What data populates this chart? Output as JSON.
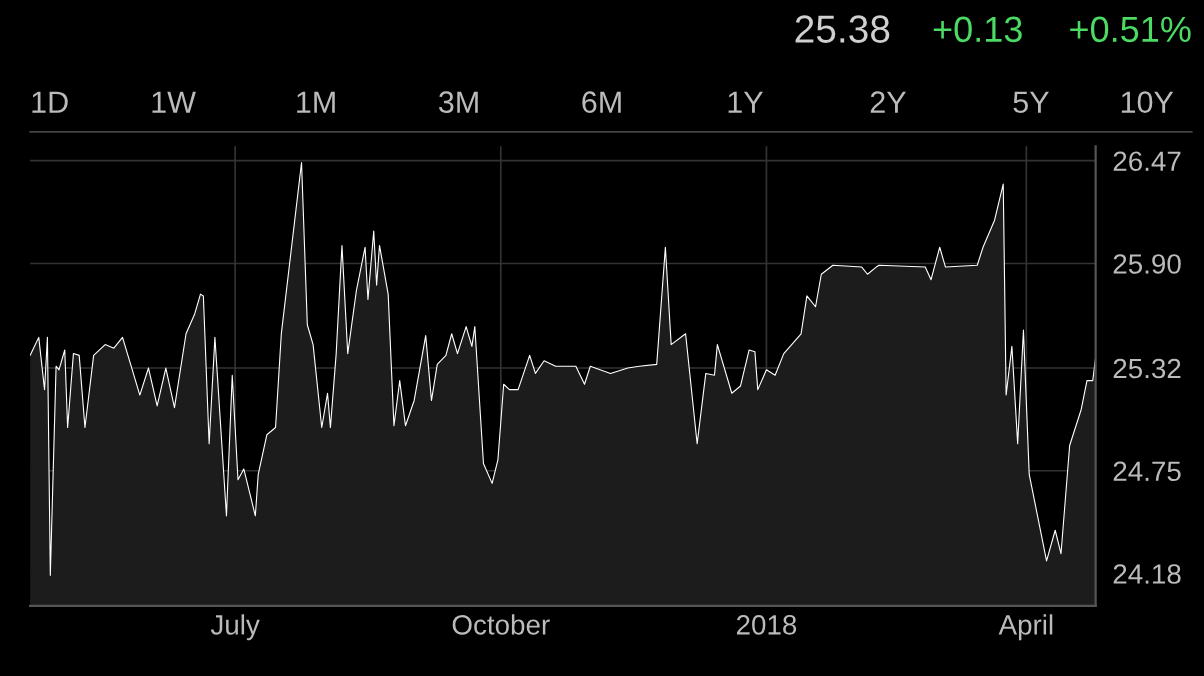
{
  "chart_data": {
    "type": "area",
    "annotations": [
      "25.38",
      "+0.13",
      "+0.51%",
      "1D",
      "1W",
      "1M",
      "3M",
      "6M",
      "1Y",
      "2Y",
      "5Y",
      "10Y"
    ],
    "x": [
      "2017-04-21",
      "2017-04-24",
      "2017-04-26",
      "2017-04-27",
      "2017-04-28",
      "2017-04-30",
      "2017-05-01",
      "2017-05-03",
      "2017-05-04",
      "2017-05-06",
      "2017-05-08",
      "2017-05-10",
      "2017-05-13",
      "2017-05-17",
      "2017-05-20",
      "2017-05-23",
      "2017-05-26",
      "2017-05-29",
      "2017-06-01",
      "2017-06-04",
      "2017-06-07",
      "2017-06-10",
      "2017-06-14",
      "2017-06-17",
      "2017-06-19",
      "2017-06-20",
      "2017-06-22",
      "2017-06-24",
      "2017-06-28",
      "2017-06-30",
      "2017-07-02",
      "2017-07-04",
      "2017-07-08",
      "2017-07-09",
      "2017-07-12",
      "2017-07-15",
      "2017-07-17",
      "2017-07-24",
      "2017-07-26",
      "2017-07-28",
      "2017-07-31",
      "2017-08-02",
      "2017-08-03",
      "2017-08-05",
      "2017-08-07",
      "2017-08-09",
      "2017-08-12",
      "2017-08-15",
      "2017-08-16",
      "2017-08-18",
      "2017-08-19",
      "2017-08-20",
      "2017-08-23",
      "2017-08-25",
      "2017-08-27",
      "2017-08-29",
      "2017-09-01",
      "2017-09-05",
      "2017-09-07",
      "2017-09-09",
      "2017-09-12",
      "2017-09-14",
      "2017-09-16",
      "2017-09-19",
      "2017-09-21",
      "2017-09-22",
      "2017-09-25",
      "2017-09-28",
      "2017-09-30",
      "2017-10-02",
      "2017-10-04",
      "2017-10-07",
      "2017-10-11",
      "2017-10-13",
      "2017-10-16",
      "2017-10-20",
      "2017-10-27",
      "2017-10-30",
      "2017-11-01",
      "2017-11-08",
      "2017-11-14",
      "2017-11-18",
      "2017-11-24",
      "2017-11-27",
      "2017-11-29",
      "2017-12-04",
      "2017-12-08",
      "2017-12-11",
      "2017-12-14",
      "2017-12-15",
      "2017-12-20",
      "2017-12-23",
      "2017-12-26",
      "2017-12-28",
      "2017-12-29",
      "2018-01-01",
      "2018-01-04",
      "2018-01-07",
      "2018-01-13",
      "2018-01-15",
      "2018-01-18",
      "2018-01-20",
      "2018-01-24",
      "2018-02-03",
      "2018-02-05",
      "2018-02-08",
      "2018-02-09",
      "2018-02-25",
      "2018-02-27",
      "2018-03-02",
      "2018-03-04",
      "2018-03-15",
      "2018-03-17",
      "2018-03-21",
      "2018-03-24",
      "2018-03-25",
      "2018-03-27",
      "2018-03-29",
      "2018-03-31",
      "2018-04-02",
      "2018-04-08",
      "2018-04-11",
      "2018-04-13",
      "2018-04-16",
      "2018-04-20",
      "2018-04-22",
      "2018-04-24",
      "2018-04-25"
    ],
    "series": [
      {
        "color": "#ffffff",
        "values": [
          25.39,
          25.49,
          25.2,
          25.49,
          24.17,
          25.33,
          25.31,
          25.42,
          24.99,
          25.4,
          25.39,
          24.99,
          25.39,
          25.45,
          25.43,
          25.49,
          25.33,
          25.17,
          25.32,
          25.11,
          25.32,
          25.1,
          25.51,
          25.62,
          25.73,
          25.72,
          24.9,
          25.49,
          24.5,
          25.28,
          24.7,
          24.76,
          24.5,
          24.73,
          24.95,
          24.99,
          25.51,
          26.46,
          25.56,
          25.45,
          24.99,
          25.18,
          24.99,
          25.4,
          26.0,
          25.4,
          25.75,
          25.99,
          25.7,
          26.08,
          25.78,
          26.0,
          25.73,
          25.0,
          25.25,
          25.0,
          25.14,
          25.5,
          25.14,
          25.34,
          25.39,
          25.51,
          25.4,
          25.55,
          25.44,
          25.55,
          24.79,
          24.68,
          24.81,
          25.23,
          25.2,
          25.2,
          25.39,
          25.29,
          25.36,
          25.33,
          25.33,
          25.23,
          25.33,
          25.29,
          25.32,
          25.33,
          25.34,
          25.99,
          25.45,
          25.51,
          24.9,
          25.29,
          25.28,
          25.45,
          25.18,
          25.22,
          25.42,
          25.41,
          25.2,
          25.31,
          25.28,
          25.4,
          25.51,
          25.72,
          25.66,
          25.84,
          25.89,
          25.88,
          25.84,
          25.88,
          25.89,
          25.88,
          25.81,
          25.99,
          25.88,
          25.89,
          25.99,
          26.14,
          26.34,
          25.17,
          25.44,
          24.9,
          25.53,
          24.73,
          24.25,
          24.42,
          24.29,
          24.89,
          25.09,
          25.25,
          25.25,
          25.38
        ]
      }
    ],
    "xlim": [
      "2017-04-21",
      "2018-04-25"
    ],
    "xticks": [
      {
        "value": "2017-07-01",
        "label": "July"
      },
      {
        "value": "2017-10-01",
        "label": "October"
      },
      {
        "value": "2018-01-01",
        "label": "2018"
      },
      {
        "value": "2018-04-01",
        "label": "April"
      }
    ],
    "ylim": [
      24.0,
      26.55
    ],
    "yticks": [
      24.18,
      24.75,
      25.32,
      {
        "value": 25.9,
        "label": "25.90"
      },
      26.47
    ],
    "grid": true,
    "line_style": "solid"
  }
}
